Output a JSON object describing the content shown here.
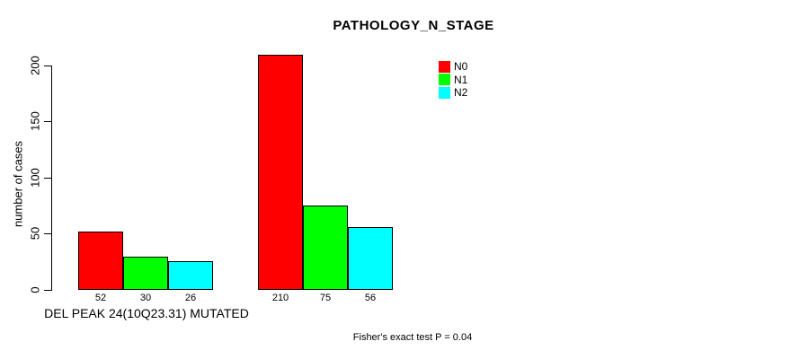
{
  "chart_data": {
    "type": "bar",
    "title": "PATHOLOGY_N_STAGE",
    "ylabel": "number of cases",
    "xlabel": "",
    "ylim": [
      0,
      200
    ],
    "yticks": [
      0,
      50,
      100,
      150,
      200
    ],
    "grid": false,
    "legend_position": "top-right",
    "series": [
      {
        "name": "N0",
        "color": "#FF0000"
      },
      {
        "name": "N1",
        "color": "#00FF00"
      },
      {
        "name": "N2",
        "color": "#00FFFF"
      }
    ],
    "groups": [
      {
        "label": "DEL PEAK 24(10Q23.31) MUTATED",
        "values": [
          52,
          30,
          26
        ]
      },
      {
        "label": "",
        "values": [
          210,
          75,
          56
        ]
      }
    ],
    "annotation": "Fisher's exact test P = 0.04"
  }
}
